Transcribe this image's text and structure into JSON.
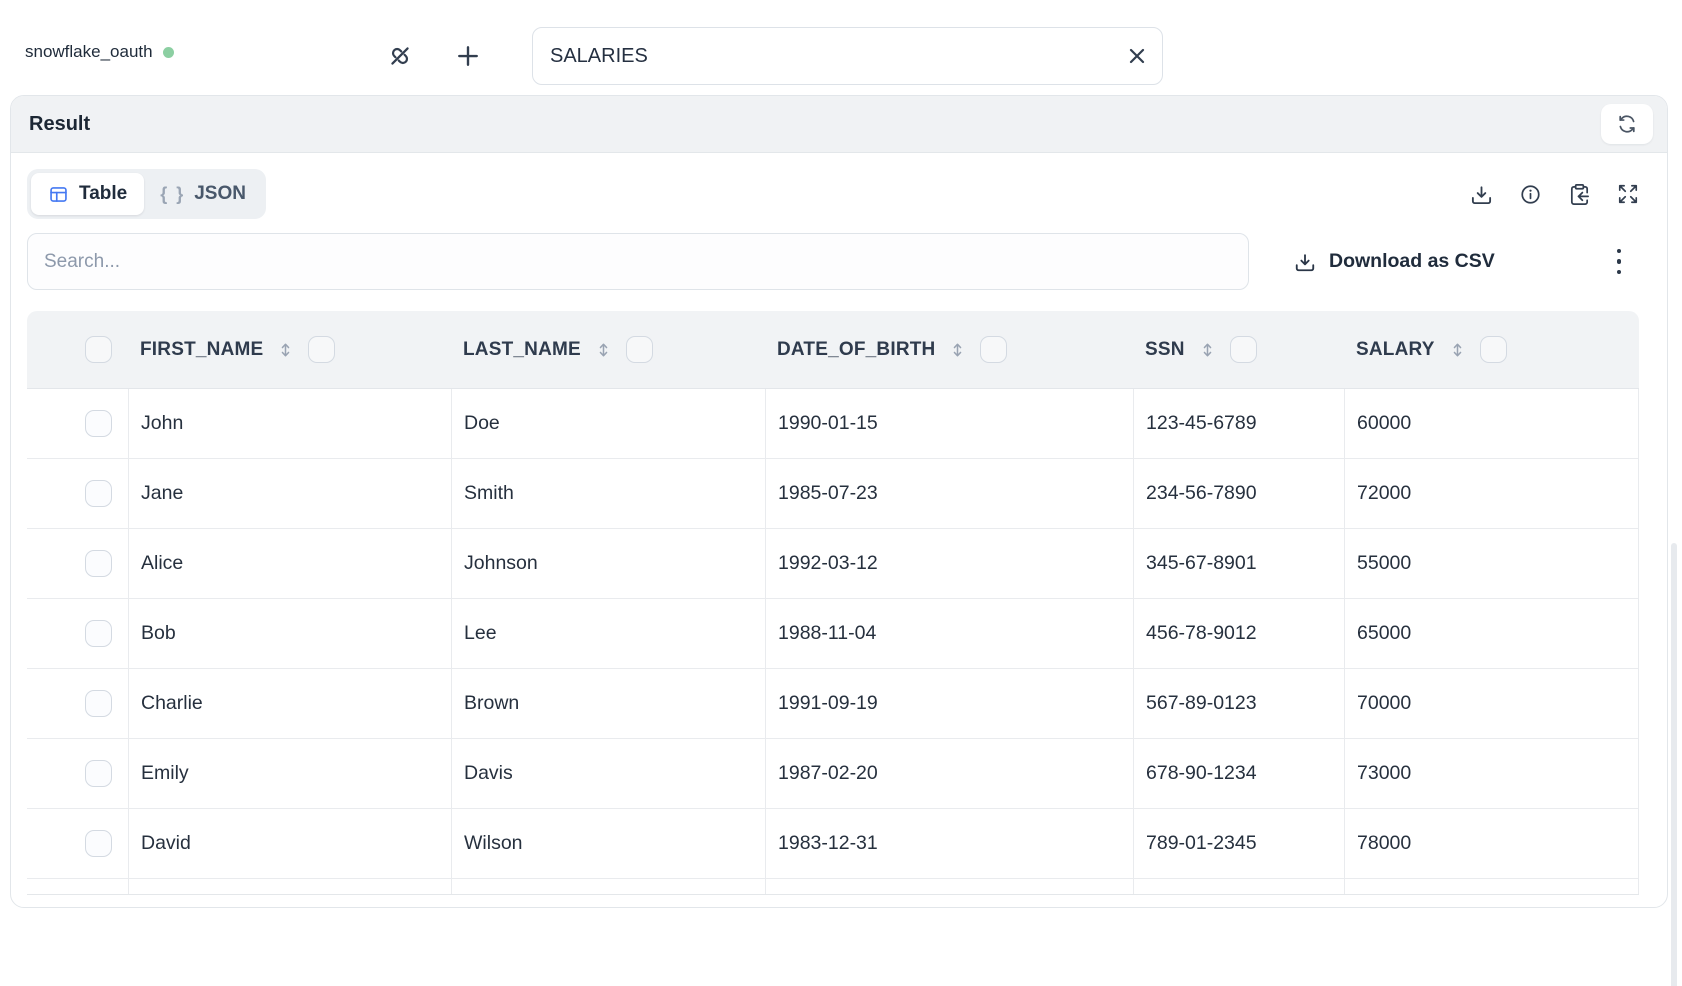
{
  "connection": {
    "name": "snowflake_oauth",
    "status": "connected",
    "status_color": "#8ccfa2"
  },
  "topbar": {
    "table_input_value": "SALARIES",
    "icons": [
      "unlink-icon",
      "plus-icon",
      "clear-x-icon"
    ]
  },
  "result_panel": {
    "title": "Result",
    "refresh_icon": "refresh-icon"
  },
  "view_tabs": [
    {
      "label": "Table",
      "icon": "table-icon",
      "active": true
    },
    {
      "label": "JSON",
      "icon": "braces-icon",
      "braces_glyph": "{ }",
      "active": false
    }
  ],
  "result_actions": [
    "download-icon",
    "info-icon",
    "clipboard-copy-icon",
    "expand-icon"
  ],
  "toolbar": {
    "search_placeholder": "Search...",
    "download_csv_label": "Download as CSV",
    "kebab_menu": "more-options"
  },
  "table": {
    "columns": [
      "FIRST_NAME",
      "LAST_NAME",
      "DATE_OF_BIRTH",
      "SSN",
      "SALARY"
    ],
    "rows": [
      [
        "John",
        "Doe",
        "1990-01-15",
        "123-45-6789",
        "60000"
      ],
      [
        "Jane",
        "Smith",
        "1985-07-23",
        "234-56-7890",
        "72000"
      ],
      [
        "Alice",
        "Johnson",
        "1992-03-12",
        "345-67-8901",
        "55000"
      ],
      [
        "Bob",
        "Lee",
        "1988-11-04",
        "456-78-9012",
        "65000"
      ],
      [
        "Charlie",
        "Brown",
        "1991-09-19",
        "567-89-0123",
        "70000"
      ],
      [
        "Emily",
        "Davis",
        "1987-02-20",
        "678-90-1234",
        "73000"
      ],
      [
        "David",
        "Wilson",
        "1983-12-31",
        "789-01-2345",
        "78000"
      ]
    ]
  },
  "colors": {
    "accent_blue": "#4579f2",
    "header_bg": "#f1f3f5",
    "border": "#e9ebee",
    "text_dark": "#202c3c"
  }
}
